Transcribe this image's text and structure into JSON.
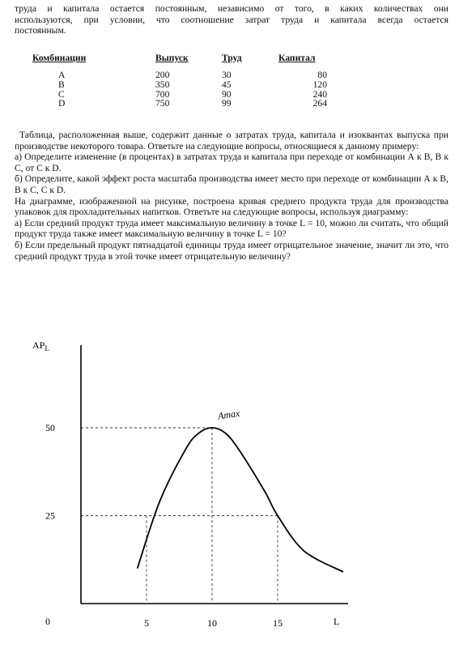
{
  "intro": {
    "lines": [
      "труда и капитала остается постоянным, независимо от того, в каких количествах они",
      "используются, при условии, что соотношение затрат труда и капитала всегда остается",
      "постоянным."
    ]
  },
  "table": {
    "headers": [
      "Комбинации",
      "Выпуск",
      "Труд",
      "Капитал"
    ],
    "rows": [
      [
        "A",
        "200",
        "30",
        "80"
      ],
      [
        "B",
        "350",
        "45",
        "120"
      ],
      [
        "C",
        "700",
        "90",
        "240"
      ],
      [
        "D",
        "750",
        "99",
        "264"
      ]
    ]
  },
  "text": {
    "p1": "Таблица, расположенная выше, содержит данные о затратах труда, капитала и изоквантах выпуска при производстве некоторого товара. Ответьте на следующие вопросы, относящиеся к данному примеру:",
    "qa": "а) Определите изменение (в процентах) в затратах труда и капитала при переходе от комбинации А к В, В к С, от С к D.",
    "qb": "б) Определите, какой эффект роста масштаба производства имеет место при переходе от комбинации А к В, В к С, С к D.",
    "p2": "На диаграмме, изображенной на рисунке, построена кривая среднего продукта труда для производства упаковок для прохладительных напитков. Ответьте на следующие вопросы, используя диаграмму:",
    "qa2": "а) Если средний продукт труда имеет максимальную величину в точке L = 10, можно ли считать, что общий продукт труда также имеет максимальную величину в точке L = 10?",
    "qb2": "б) Если предельный продукт пятнадцатой единицы труда имеет отрицательное значение, значит ли это, что средний продукт труда в этой точке имеет отрицательную величину?"
  },
  "chart_data": {
    "type": "line",
    "ylabel": "AP",
    "ylabel_sub": "L",
    "xlabel": "L",
    "origin_label": "0",
    "x_ticks": [
      "5",
      "10",
      "15"
    ],
    "y_ticks": [
      "25",
      "50"
    ],
    "annotation": "Amax",
    "xlim": [
      0,
      20
    ],
    "ylim": [
      0,
      64
    ],
    "series": [
      {
        "x": [
          4.3,
          6,
          8,
          9,
          10,
          11,
          12,
          14,
          15,
          17,
          20
        ],
        "values": [
          10,
          29,
          44,
          48.5,
          50,
          48.5,
          44,
          32,
          25,
          15,
          9
        ]
      }
    ],
    "guides": [
      {
        "x": 5,
        "y": 25
      },
      {
        "x": 10,
        "y": 50
      },
      {
        "x": 15,
        "y": 25
      }
    ]
  }
}
